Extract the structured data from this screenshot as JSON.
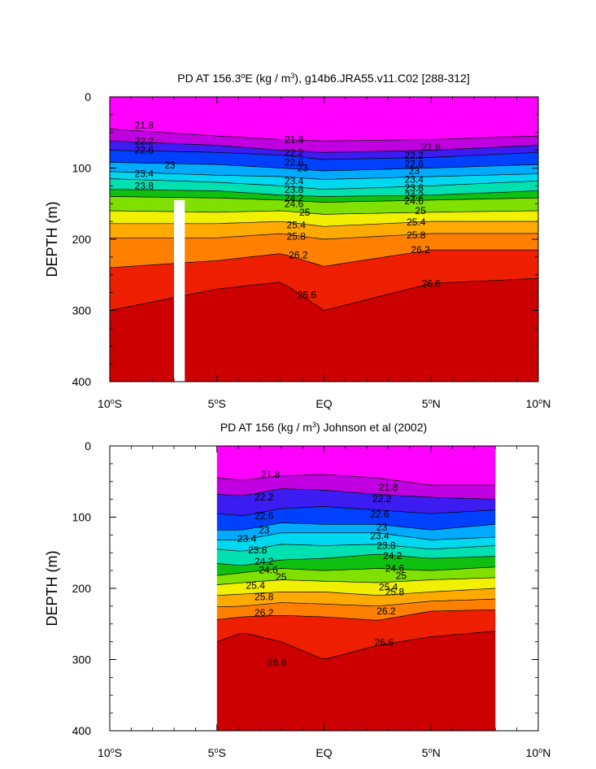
{
  "chart_data": [
    {
      "type": "heatmap",
      "title": "PD AT 156.3°E (kg / m³), g14b6.JRA55.v11.C02 [288-312]",
      "title_parts": {
        "a": "PD AT 156.3",
        "b": "E (kg / m",
        "c": "), g14b6.JRA55.v11.C02 [288-312]"
      },
      "ylabel": "DEPTH (m)",
      "x_ticks": [
        {
          "text": "10°S",
          "n": "10",
          "d": "S"
        },
        {
          "text": "5°S",
          "n": "5",
          "d": "S"
        },
        {
          "text": "EQ"
        },
        {
          "text": "5°N",
          "n": "5",
          "d": "N"
        },
        {
          "text": "10°N",
          "n": "10",
          "d": "N"
        }
      ],
      "y_ticks": [
        "0",
        "100",
        "200",
        "300",
        "400"
      ],
      "xlim": [
        -10,
        10
      ],
      "ylim": [
        400,
        0
      ],
      "data_extent": [
        -10,
        10
      ],
      "masked_column": {
        "x": [
          -7.0,
          -6.5
        ],
        "depth_from": 145
      },
      "contour_levels": [
        21.8,
        22.2,
        22.6,
        23,
        23.4,
        23.8,
        24.2,
        24.6,
        25,
        25.4,
        25.8,
        26.2,
        26.6
      ],
      "contour_depths_at_x": {
        "x": [
          -10,
          -5,
          -2,
          0,
          5,
          10
        ],
        "21.8": [
          45,
          55,
          60,
          62,
          60,
          55
        ],
        "22.2": [
          62,
          68,
          75,
          78,
          75,
          68
        ],
        "22.6": [
          75,
          78,
          82,
          88,
          85,
          78
        ],
        "23": [
          92,
          95,
          100,
          104,
          100,
          95
        ],
        "23.4": [
          105,
          110,
          112,
          116,
          112,
          108
        ],
        "23.8": [
          115,
          120,
          125,
          130,
          125,
          118
        ],
        "24.2": [
          130,
          132,
          138,
          140,
          138,
          132
        ],
        "24.6": [
          140,
          142,
          145,
          148,
          145,
          142
        ],
        "25": [
          160,
          162,
          160,
          165,
          162,
          160
        ],
        "25.4": [
          178,
          178,
          175,
          182,
          175,
          175
        ],
        "25.8": [
          198,
          198,
          192,
          200,
          192,
          192
        ],
        "26.2": [
          240,
          230,
          220,
          238,
          215,
          215
        ],
        "26.6": [
          300,
          270,
          260,
          300,
          262,
          255
        ]
      },
      "contour_labels": [
        {
          "t": "21.8",
          "x": -8.4,
          "d": 40
        },
        {
          "t": "22.2",
          "x": -8.4,
          "d": 62
        },
        {
          "t": "22.6",
          "x": -8.4,
          "d": 75
        },
        {
          "t": "23",
          "x": -7.2,
          "d": 96
        },
        {
          "t": "23.4",
          "x": -8.4,
          "d": 108
        },
        {
          "t": "23.8",
          "x": -8.4,
          "d": 125
        },
        {
          "t": "21.8",
          "x": -1.4,
          "d": 60
        },
        {
          "t": "22.2",
          "x": -1.4,
          "d": 78
        },
        {
          "t": "22.6",
          "x": -1.4,
          "d": 92
        },
        {
          "t": "23",
          "x": -1.0,
          "d": 100
        },
        {
          "t": "23.4",
          "x": -1.4,
          "d": 118
        },
        {
          "t": "23.8",
          "x": -1.4,
          "d": 130
        },
        {
          "t": "24.2",
          "x": -1.4,
          "d": 142
        },
        {
          "t": "24.6",
          "x": -1.4,
          "d": 150
        },
        {
          "t": "25",
          "x": -0.9,
          "d": 162
        },
        {
          "t": "25.4",
          "x": -1.3,
          "d": 180
        },
        {
          "t": "25.8",
          "x": -1.3,
          "d": 196
        },
        {
          "t": "26.2",
          "x": -1.2,
          "d": 222
        },
        {
          "t": "26.6",
          "x": -0.8,
          "d": 278
        },
        {
          "t": "21.8",
          "x": 5.0,
          "d": 70
        },
        {
          "t": "22.2",
          "x": 4.2,
          "d": 82
        },
        {
          "t": "22.6",
          "x": 4.2,
          "d": 94
        },
        {
          "t": "23",
          "x": 4.2,
          "d": 104
        },
        {
          "t": "23.4",
          "x": 4.2,
          "d": 116
        },
        {
          "t": "23.8",
          "x": 4.2,
          "d": 128
        },
        {
          "t": "24.2",
          "x": 4.2,
          "d": 138
        },
        {
          "t": "24.6",
          "x": 4.2,
          "d": 146
        },
        {
          "t": "25",
          "x": 4.5,
          "d": 160
        },
        {
          "t": "25.4",
          "x": 4.3,
          "d": 176
        },
        {
          "t": "25.8",
          "x": 4.3,
          "d": 194
        },
        {
          "t": "26.2",
          "x": 4.5,
          "d": 215
        },
        {
          "t": "26.6",
          "x": 5.0,
          "d": 262
        }
      ]
    },
    {
      "type": "heatmap",
      "title": "PD AT 156 (kg / m³) Johnson et al (2002)",
      "title_parts": {
        "a": "PD AT 156 (kg / m",
        "b": ") Johnson et al (2002)"
      },
      "ylabel": "DEPTH (m)",
      "x_ticks": [
        {
          "text": "10°S",
          "n": "10",
          "d": "S"
        },
        {
          "text": "5°S",
          "n": "5",
          "d": "S"
        },
        {
          "text": "EQ"
        },
        {
          "text": "5°N",
          "n": "5",
          "d": "N"
        },
        {
          "text": "10°N",
          "n": "10",
          "d": "N"
        }
      ],
      "y_ticks": [
        "0",
        "100",
        "200",
        "300",
        "400"
      ],
      "xlim": [
        -10,
        10
      ],
      "ylim": [
        400,
        0
      ],
      "data_extent": [
        -5,
        8
      ],
      "contour_levels": [
        21.8,
        22.2,
        22.6,
        23,
        23.4,
        23.8,
        24.2,
        24.6,
        25,
        25.4,
        25.8,
        26.2,
        26.6
      ],
      "contour_depths_at_x": {
        "x": [
          -5,
          -3.8,
          -2,
          0,
          2.5,
          5,
          8
        ],
        "21.8": [
          45,
          48,
          42,
          40,
          45,
          55,
          55
        ],
        "22.2": [
          68,
          70,
          60,
          62,
          68,
          72,
          75
        ],
        "22.6": [
          95,
          98,
          88,
          85,
          90,
          95,
          90
        ],
        "23": [
          118,
          118,
          108,
          110,
          110,
          118,
          110
        ],
        "23.4": [
          132,
          132,
          122,
          122,
          122,
          132,
          128
        ],
        "23.8": [
          145,
          148,
          138,
          140,
          138,
          145,
          140
        ],
        "24.2": [
          165,
          168,
          160,
          158,
          152,
          158,
          155
        ],
        "24.6": [
          182,
          178,
          172,
          175,
          172,
          175,
          170
        ],
        "25": [
          195,
          192,
          188,
          190,
          192,
          188,
          185
        ],
        "25.4": [
          210,
          208,
          205,
          205,
          210,
          205,
          200
        ],
        "25.8": [
          226,
          225,
          220,
          222,
          225,
          218,
          215
        ],
        "26.2": [
          244,
          240,
          238,
          240,
          245,
          232,
          230
        ],
        "26.6": [
          275,
          262,
          275,
          300,
          280,
          268,
          260
        ]
      },
      "contour_labels": [
        {
          "t": "21.8",
          "x": -2.5,
          "d": 40
        },
        {
          "t": "22.2",
          "x": -2.8,
          "d": 72
        },
        {
          "t": "22.6",
          "x": -2.8,
          "d": 98
        },
        {
          "t": "23",
          "x": -2.8,
          "d": 118
        },
        {
          "t": "23.4",
          "x": -3.6,
          "d": 130
        },
        {
          "t": "23.8",
          "x": -3.1,
          "d": 146
        },
        {
          "t": "24.2",
          "x": -2.8,
          "d": 162
        },
        {
          "t": "24.6",
          "x": -2.6,
          "d": 174
        },
        {
          "t": "25",
          "x": -2.0,
          "d": 184
        },
        {
          "t": "25.4",
          "x": -3.2,
          "d": 196
        },
        {
          "t": "25.8",
          "x": -2.8,
          "d": 212
        },
        {
          "t": "26.2",
          "x": -2.8,
          "d": 234
        },
        {
          "t": "26.6",
          "x": -2.2,
          "d": 304
        },
        {
          "t": "21.8",
          "x": 3.0,
          "d": 58
        },
        {
          "t": "22.2",
          "x": 2.7,
          "d": 74
        },
        {
          "t": "22.6",
          "x": 2.6,
          "d": 96
        },
        {
          "t": "23",
          "x": 2.7,
          "d": 114
        },
        {
          "t": "23.4",
          "x": 2.6,
          "d": 126
        },
        {
          "t": "23.8",
          "x": 2.9,
          "d": 140
        },
        {
          "t": "24.2",
          "x": 3.2,
          "d": 154
        },
        {
          "t": "24.6",
          "x": 3.3,
          "d": 172
        },
        {
          "t": "25",
          "x": 3.6,
          "d": 182
        },
        {
          "t": "25.4",
          "x": 3.0,
          "d": 198
        },
        {
          "t": "25.8",
          "x": 3.3,
          "d": 205
        },
        {
          "t": "26.2",
          "x": 2.9,
          "d": 232
        },
        {
          "t": "26.6",
          "x": 2.8,
          "d": 276
        }
      ]
    }
  ],
  "colors": {
    "background": "#ffffff",
    "missing": "#c8c8c8",
    "bands": [
      "#ff00ff",
      "#c000e0",
      "#8a00d8",
      "#3c1cf0",
      "#0040ff",
      "#0078ff",
      "#00aaff",
      "#00d8f0",
      "#00e0b0",
      "#00d060",
      "#10c010",
      "#80e000",
      "#f0f000",
      "#ffd000",
      "#ffaa00",
      "#ff8000",
      "#ff5000",
      "#ee1e00",
      "#cc0000"
    ]
  }
}
